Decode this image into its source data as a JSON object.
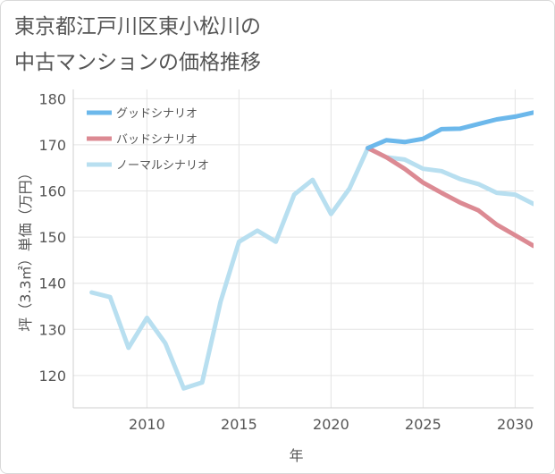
{
  "title_lines": [
    "東京都江戸川区東小松川の",
    "中古マンションの価格推移"
  ],
  "chart_data": {
    "type": "line",
    "title": "東京都江戸川区東小松川の中古マンションの価格推移",
    "xlabel": "年",
    "ylabel": "坪（3.3㎡）単価（万円）",
    "xlim": [
      2006,
      2031
    ],
    "ylim": [
      113,
      182
    ],
    "x_ticks": [
      2010,
      2015,
      2020,
      2025,
      2030
    ],
    "y_ticks": [
      120,
      130,
      140,
      150,
      160,
      170,
      180
    ],
    "grid": true,
    "legend_position": "top-left",
    "series": [
      {
        "name": "グッドシナリオ",
        "color": "#6cb8eb",
        "x": [
          2022,
          2023,
          2024,
          2025,
          2026,
          2027,
          2028,
          2029,
          2030,
          2031
        ],
        "y": [
          169.3,
          171.0,
          170.6,
          171.3,
          173.4,
          173.5,
          174.5,
          175.5,
          176.1,
          177.0
        ]
      },
      {
        "name": "バッドシナリオ",
        "color": "#dc8a93",
        "x": [
          2022,
          2023,
          2024,
          2025,
          2026,
          2027,
          2028,
          2029,
          2030,
          2031
        ],
        "y": [
          169.3,
          167.3,
          164.8,
          161.8,
          159.6,
          157.5,
          155.8,
          152.7,
          150.4,
          148.1
        ]
      },
      {
        "name": "ノーマルシナリオ",
        "color": "#b8dff0",
        "x": [
          2007,
          2008,
          2009,
          2010,
          2011,
          2012,
          2013,
          2014,
          2015,
          2016,
          2017,
          2018,
          2019,
          2020,
          2021,
          2022,
          2023,
          2024,
          2025,
          2026,
          2027,
          2028,
          2029,
          2030,
          2031
        ],
        "y": [
          138.0,
          137.0,
          126.0,
          132.5,
          127.0,
          117.2,
          118.5,
          136.0,
          149.0,
          151.4,
          149.0,
          159.2,
          162.4,
          155.0,
          160.5,
          169.3,
          167.3,
          166.8,
          164.8,
          164.3,
          162.6,
          161.5,
          159.6,
          159.2,
          157.2
        ]
      }
    ]
  }
}
